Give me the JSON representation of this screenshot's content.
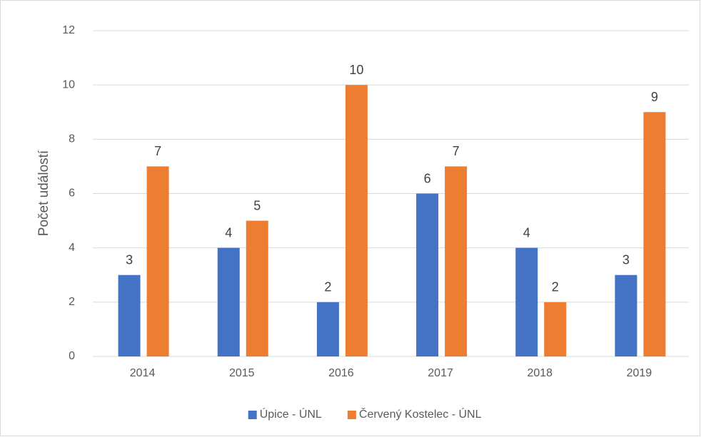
{
  "chart_data": {
    "type": "bar",
    "categories": [
      "2014",
      "2015",
      "2016",
      "2017",
      "2018",
      "2019"
    ],
    "series": [
      {
        "name": "Úpice - ÚNL",
        "color": "#4472c4",
        "values": [
          3,
          4,
          2,
          6,
          4,
          3
        ]
      },
      {
        "name": "Červený Kostelec - ÚNL",
        "color": "#ed7d31",
        "values": [
          7,
          5,
          10,
          7,
          2,
          9
        ]
      }
    ],
    "y_label": "Počet událostí",
    "ylim": [
      0,
      12
    ],
    "yticks": [
      0,
      2,
      4,
      6,
      8,
      10,
      12
    ],
    "grid": true,
    "legend": "bottom"
  }
}
